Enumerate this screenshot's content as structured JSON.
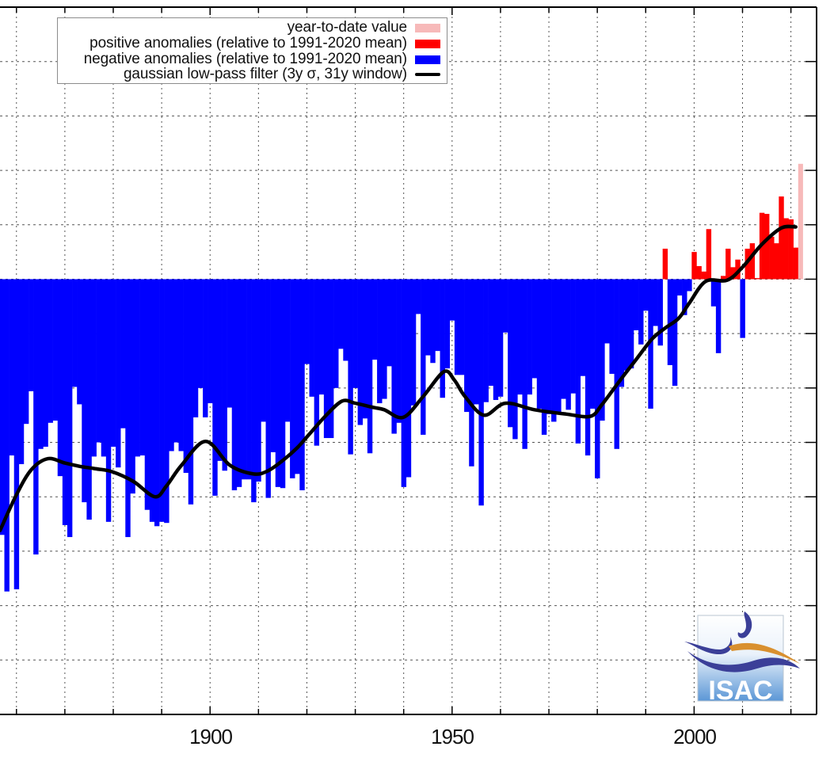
{
  "chart_data": {
    "type": "bar",
    "title": "",
    "xlabel": "",
    "ylabel": "",
    "y_units_note": "anomaly relative to 1991-2020 mean; gridline spacing 0.5",
    "xlim": [
      1856.6,
      2025.3
    ],
    "ylim": [
      -4.0,
      2.5
    ],
    "grid": true,
    "grid_x_step": 10,
    "grid_y_step": 0.5,
    "x_tick_labels": [
      "1900",
      "1950",
      "2000"
    ],
    "x_tick_values": [
      1900,
      1950,
      2000
    ],
    "legend_position": "top-left",
    "legend": [
      {
        "key": "ytd",
        "label": "year-to-date value",
        "color": "#f7b9b9",
        "kind": "bar"
      },
      {
        "key": "pos",
        "label": "positive anomalies (relative to 1991-2020 mean)",
        "color": "#ff0000",
        "kind": "bar"
      },
      {
        "key": "neg",
        "label": "negative anomalies (relative to 1991-2020 mean)",
        "color": "#0000ff",
        "kind": "bar"
      },
      {
        "key": "filter",
        "label": "gaussian low-pass filter (3y σ, 31y window)",
        "color": "#000000",
        "kind": "line"
      }
    ],
    "years": [
      1857,
      1858,
      1859,
      1860,
      1861,
      1862,
      1863,
      1864,
      1865,
      1866,
      1867,
      1868,
      1869,
      1870,
      1871,
      1872,
      1873,
      1874,
      1875,
      1876,
      1877,
      1878,
      1879,
      1880,
      1881,
      1882,
      1883,
      1884,
      1885,
      1886,
      1887,
      1888,
      1889,
      1890,
      1891,
      1892,
      1893,
      1894,
      1895,
      1896,
      1897,
      1898,
      1899,
      1900,
      1901,
      1902,
      1903,
      1904,
      1905,
      1906,
      1907,
      1908,
      1909,
      1910,
      1911,
      1912,
      1913,
      1914,
      1915,
      1916,
      1917,
      1918,
      1919,
      1920,
      1921,
      1922,
      1923,
      1924,
      1925,
      1926,
      1927,
      1928,
      1929,
      1930,
      1931,
      1932,
      1933,
      1934,
      1935,
      1936,
      1937,
      1938,
      1939,
      1940,
      1941,
      1942,
      1943,
      1944,
      1945,
      1946,
      1947,
      1948,
      1949,
      1950,
      1951,
      1952,
      1953,
      1954,
      1955,
      1956,
      1957,
      1958,
      1959,
      1960,
      1961,
      1962,
      1963,
      1964,
      1965,
      1966,
      1967,
      1968,
      1969,
      1970,
      1971,
      1972,
      1973,
      1974,
      1975,
      1976,
      1977,
      1978,
      1979,
      1980,
      1981,
      1982,
      1983,
      1984,
      1985,
      1986,
      1987,
      1988,
      1989,
      1990,
      1991,
      1992,
      1993,
      1994,
      1995,
      1996,
      1997,
      1998,
      1999,
      2000,
      2001,
      2002,
      2003,
      2004,
      2005,
      2006,
      2007,
      2008,
      2009,
      2010,
      2011,
      2012,
      2013,
      2014,
      2015,
      2016,
      2017,
      2018,
      2019,
      2020,
      2021
    ],
    "values": [
      -2.35,
      -2.87,
      -1.62,
      -2.85,
      -1.7,
      -1.33,
      -1.03,
      -2.53,
      -1.56,
      -1.54,
      -1.32,
      -1.3,
      -1.81,
      -2.26,
      -2.37,
      -0.99,
      -1.15,
      -2.05,
      -2.21,
      -1.63,
      -1.5,
      -1.63,
      -2.23,
      -1.54,
      -1.73,
      -1.37,
      -2.37,
      -1.97,
      -1.63,
      -1.62,
      -2.12,
      -2.23,
      -2.27,
      -2.23,
      -2.24,
      -1.58,
      -1.5,
      -1.58,
      -1.78,
      -2.07,
      -1.27,
      -1.0,
      -1.27,
      -1.14,
      -1.99,
      -1.67,
      -1.76,
      -1.18,
      -1.94,
      -1.91,
      -1.84,
      -1.84,
      -2.05,
      -1.86,
      -1.31,
      -2.01,
      -1.59,
      -1.91,
      -1.92,
      -1.31,
      -1.83,
      -1.79,
      -1.94,
      -0.78,
      -1.08,
      -1.53,
      -1.06,
      -1.46,
      -1.46,
      -1.0,
      -0.64,
      -0.75,
      -1.61,
      -1.0,
      -1.34,
      -1.28,
      -1.6,
      -0.74,
      -1.14,
      -1.1,
      -0.8,
      -1.42,
      -1.32,
      -1.91,
      -1.82,
      -1.16,
      -0.32,
      -1.43,
      -0.7,
      -0.77,
      -0.66,
      -1.09,
      -0.82,
      -0.38,
      -0.88,
      -0.88,
      -1.22,
      -1.72,
      -1.15,
      -2.08,
      -1.13,
      -0.98,
      -1.11,
      -1.08,
      -0.49,
      -1.36,
      -1.47,
      -1.06,
      -1.56,
      -1.06,
      -0.91,
      -1.19,
      -1.43,
      -1.24,
      -1.31,
      -1.24,
      -1.1,
      -1.2,
      -1.05,
      -1.51,
      -0.89,
      -1.62,
      -1.19,
      -1.83,
      -1.3,
      -0.59,
      -0.87,
      -1.56,
      -0.99,
      -0.84,
      -0.82,
      -0.47,
      -0.6,
      -0.29,
      -1.19,
      -0.43,
      -0.61,
      0.28,
      -0.79,
      -0.98,
      -0.15,
      -0.33,
      -0.11,
      0.25,
      0.12,
      0.07,
      0.46,
      -0.25,
      -0.68,
      0.03,
      0.28,
      0.11,
      0.18,
      -0.54,
      0.28,
      0.33,
      0.01,
      0.61,
      0.6,
      0.39,
      0.33,
      0.76,
      0.56,
      0.55,
      0.29
    ],
    "year_to_date": {
      "year": 2022,
      "value": 1.06
    },
    "filter_curve": {
      "x": [
        1856.6,
        1860,
        1863.1,
        1866.5,
        1870,
        1873.1,
        1876,
        1879.8,
        1884.2,
        1888.6,
        1891,
        1894.1,
        1899.1,
        1904.1,
        1909.0,
        1912,
        1915.2,
        1918,
        1920.6,
        1924,
        1927.3,
        1930,
        1933.9,
        1936,
        1939.9,
        1944,
        1948.3,
        1950.5,
        1952.7,
        1956.6,
        1961.0,
        1967.0,
        1973.6,
        1978.6,
        1981,
        1984.7,
        1988,
        1991.3,
        1994,
        1996.8,
        1999,
        2002.4,
        2006.8,
        2010,
        2014,
        2018,
        2021
      ],
      "y": [
        -2.31,
        -1.98,
        -1.75,
        -1.65,
        -1.69,
        -1.72,
        -1.74,
        -1.77,
        -1.86,
        -2.0,
        -1.9,
        -1.71,
        -1.49,
        -1.71,
        -1.79,
        -1.76,
        -1.66,
        -1.55,
        -1.42,
        -1.25,
        -1.12,
        -1.14,
        -1.18,
        -1.2,
        -1.27,
        -1.08,
        -0.85,
        -0.93,
        -1.08,
        -1.25,
        -1.14,
        -1.2,
        -1.24,
        -1.26,
        -1.15,
        -0.93,
        -0.74,
        -0.55,
        -0.45,
        -0.36,
        -0.22,
        -0.02,
        -0.01,
        0.11,
        0.32,
        0.47,
        0.48
      ]
    }
  },
  "logo": {
    "text": "ISAC"
  }
}
